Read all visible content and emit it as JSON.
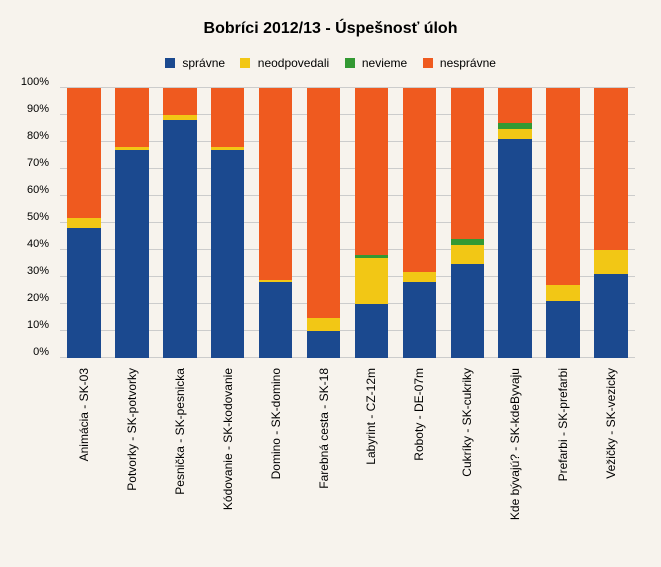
{
  "chart": {
    "type": "stacked-bar-100",
    "title": "Bobríci 2012/13 - Úspešnosť úloh",
    "title_fontsize": 16,
    "background_color": "#f7f3ed",
    "grid_color": "#cccccc",
    "text_color": "#000000",
    "label_fontsize": 12,
    "bar_width": 0.7,
    "ylim": [
      0,
      100
    ],
    "ytick_step": 10,
    "y_ticks": [
      "0%",
      "10%",
      "20%",
      "30%",
      "40%",
      "50%",
      "60%",
      "70%",
      "80%",
      "90%",
      "100%"
    ],
    "legend_position": "top",
    "series": [
      {
        "key": "spravne",
        "label": "správne",
        "color": "#1b498f"
      },
      {
        "key": "neodpovedali",
        "label": "neodpovedali",
        "color": "#f2c715"
      },
      {
        "key": "nevieme",
        "label": "nevieme",
        "color": "#339933"
      },
      {
        "key": "nespravne",
        "label": "nesprávne",
        "color": "#ef5a1f"
      }
    ],
    "categories": [
      {
        "label": "Animácia  - SK-03",
        "values": {
          "spravne": 48,
          "neodpovedali": 4,
          "nevieme": 0,
          "nespravne": 48
        }
      },
      {
        "label": "Potvorky  - SK-potvorky",
        "values": {
          "spravne": 77,
          "neodpovedali": 1,
          "nevieme": 0,
          "nespravne": 22
        }
      },
      {
        "label": "Pesnička  - SK-pesnicka",
        "values": {
          "spravne": 88,
          "neodpovedali": 2,
          "nevieme": 0,
          "nespravne": 10
        }
      },
      {
        "label": "Kódovanie  - SK-kodovanie",
        "values": {
          "spravne": 77,
          "neodpovedali": 1,
          "nevieme": 0,
          "nespravne": 22
        }
      },
      {
        "label": "Domino  - SK-domino",
        "values": {
          "spravne": 28,
          "neodpovedali": 1,
          "nevieme": 0,
          "nespravne": 71
        }
      },
      {
        "label": "Farebná cesta  - SK-18",
        "values": {
          "spravne": 10,
          "neodpovedali": 5,
          "nevieme": 0,
          "nespravne": 85
        }
      },
      {
        "label": "Labyrint  - CZ-12m",
        "values": {
          "spravne": 20,
          "neodpovedali": 17,
          "nevieme": 1,
          "nespravne": 62
        }
      },
      {
        "label": "Roboty  - DE-07m",
        "values": {
          "spravne": 28,
          "neodpovedali": 4,
          "nevieme": 0,
          "nespravne": 68
        }
      },
      {
        "label": "Cukríky  - SK-cukriky",
        "values": {
          "spravne": 35,
          "neodpovedali": 7,
          "nevieme": 2,
          "nespravne": 56
        }
      },
      {
        "label": "Kde bývajú?  - SK-kdeByvaju",
        "values": {
          "spravne": 81,
          "neodpovedali": 4,
          "nevieme": 2,
          "nespravne": 13
        }
      },
      {
        "label": "Prefarbi  - SK-prefarbi",
        "values": {
          "spravne": 21,
          "neodpovedali": 6,
          "nevieme": 0,
          "nespravne": 73
        }
      },
      {
        "label": "Vežičky  - SK-vezicky",
        "values": {
          "spravne": 31,
          "neodpovedali": 9,
          "nevieme": 0,
          "nespravne": 60
        }
      }
    ]
  }
}
